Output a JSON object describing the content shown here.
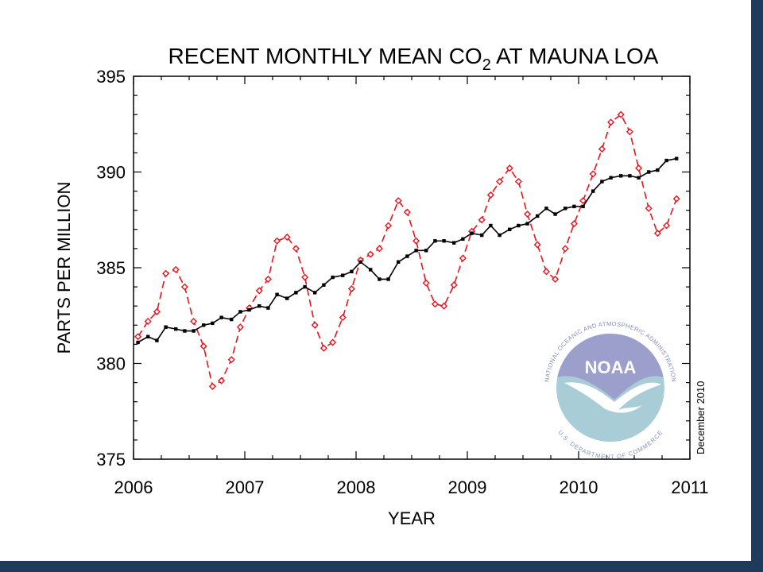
{
  "chart_data": {
    "type": "line",
    "title_main": "RECENT MONTHLY MEAN CO",
    "title_sub": "2",
    "title_tail": " AT MAUNA LOA",
    "xlabel": "YEAR",
    "ylabel": "PARTS PER MILLION",
    "xlim": [
      2006,
      2011
    ],
    "ylim": [
      375,
      395
    ],
    "xticks": [
      2006,
      2007,
      2008,
      2009,
      2010,
      2011
    ],
    "yticks": [
      375,
      380,
      385,
      390,
      395
    ],
    "grid": false,
    "annotation": "December 2010",
    "series": [
      {
        "color": "#e8141e",
        "style": "dashed",
        "x": [
          2006.04,
          2006.13,
          2006.21,
          2006.29,
          2006.38,
          2006.46,
          2006.54,
          2006.63,
          2006.71,
          2006.79,
          2006.88,
          2006.96,
          2007.04,
          2007.13,
          2007.21,
          2007.29,
          2007.38,
          2007.46,
          2007.54,
          2007.63,
          2007.71,
          2007.79,
          2007.88,
          2007.96,
          2008.04,
          2008.13,
          2008.21,
          2008.29,
          2008.38,
          2008.46,
          2008.54,
          2008.63,
          2008.71,
          2008.79,
          2008.88,
          2008.96,
          2009.04,
          2009.13,
          2009.21,
          2009.29,
          2009.38,
          2009.46,
          2009.54,
          2009.63,
          2009.71,
          2009.79,
          2009.88,
          2009.96,
          2010.04,
          2010.13,
          2010.21,
          2010.29,
          2010.38,
          2010.46,
          2010.54,
          2010.63,
          2010.71,
          2010.79,
          2010.88
        ],
        "y": [
          381.4,
          382.2,
          382.7,
          384.7,
          384.9,
          384.0,
          382.2,
          380.9,
          378.8,
          379.1,
          380.2,
          381.9,
          382.9,
          383.8,
          384.4,
          386.4,
          386.6,
          386.0,
          384.5,
          382.0,
          380.8,
          381.1,
          382.4,
          383.9,
          385.4,
          385.7,
          386.0,
          387.2,
          388.5,
          387.9,
          386.4,
          384.2,
          383.1,
          383.0,
          384.1,
          385.5,
          386.9,
          387.5,
          388.8,
          389.5,
          390.2,
          389.5,
          387.8,
          386.2,
          384.8,
          384.4,
          386.0,
          387.3,
          388.5,
          389.9,
          391.2,
          392.6,
          393.0,
          392.1,
          390.2,
          388.1,
          386.8,
          387.2,
          388.6
        ]
      },
      {
        "color": "#000000",
        "style": "solid",
        "x": [
          2006.04,
          2006.13,
          2006.21,
          2006.29,
          2006.38,
          2006.46,
          2006.54,
          2006.63,
          2006.71,
          2006.79,
          2006.88,
          2006.96,
          2007.04,
          2007.13,
          2007.21,
          2007.29,
          2007.38,
          2007.46,
          2007.54,
          2007.63,
          2007.71,
          2007.79,
          2007.88,
          2007.96,
          2008.04,
          2008.13,
          2008.21,
          2008.29,
          2008.38,
          2008.46,
          2008.54,
          2008.63,
          2008.71,
          2008.79,
          2008.88,
          2008.96,
          2009.04,
          2009.13,
          2009.21,
          2009.29,
          2009.38,
          2009.46,
          2009.54,
          2009.63,
          2009.71,
          2009.79,
          2009.88,
          2009.96,
          2010.04,
          2010.13,
          2010.21,
          2010.29,
          2010.38,
          2010.46,
          2010.54,
          2010.63,
          2010.71,
          2010.79,
          2010.88
        ],
        "y": [
          381.1,
          381.4,
          381.2,
          381.9,
          381.8,
          381.7,
          381.7,
          382.0,
          382.1,
          382.4,
          382.3,
          382.7,
          382.8,
          383.0,
          382.9,
          383.6,
          383.4,
          383.7,
          384.0,
          383.7,
          384.1,
          384.5,
          384.6,
          384.8,
          385.3,
          384.9,
          384.4,
          384.4,
          385.3,
          385.6,
          385.9,
          385.9,
          386.4,
          386.4,
          386.3,
          386.5,
          386.8,
          386.7,
          387.2,
          386.7,
          387.0,
          387.2,
          387.3,
          387.7,
          388.1,
          387.8,
          388.1,
          388.2,
          388.2,
          389.0,
          389.5,
          389.7,
          389.8,
          389.8,
          389.7,
          390.0,
          390.1,
          390.6,
          390.7
        ]
      }
    ]
  },
  "logo": {
    "name": "noaa-logo",
    "wordmark": "NOAA",
    "ring_top": "NATIONAL OCEANIC AND ATMOSPHERIC ADMINISTRATION",
    "ring_bottom": "U.S. DEPARTMENT OF COMMERCE",
    "colors": {
      "top": "#9c9fcb",
      "bottom": "#a9cdd7",
      "text": "#7f8fb6"
    }
  },
  "frame_color": "#1e3a5c"
}
